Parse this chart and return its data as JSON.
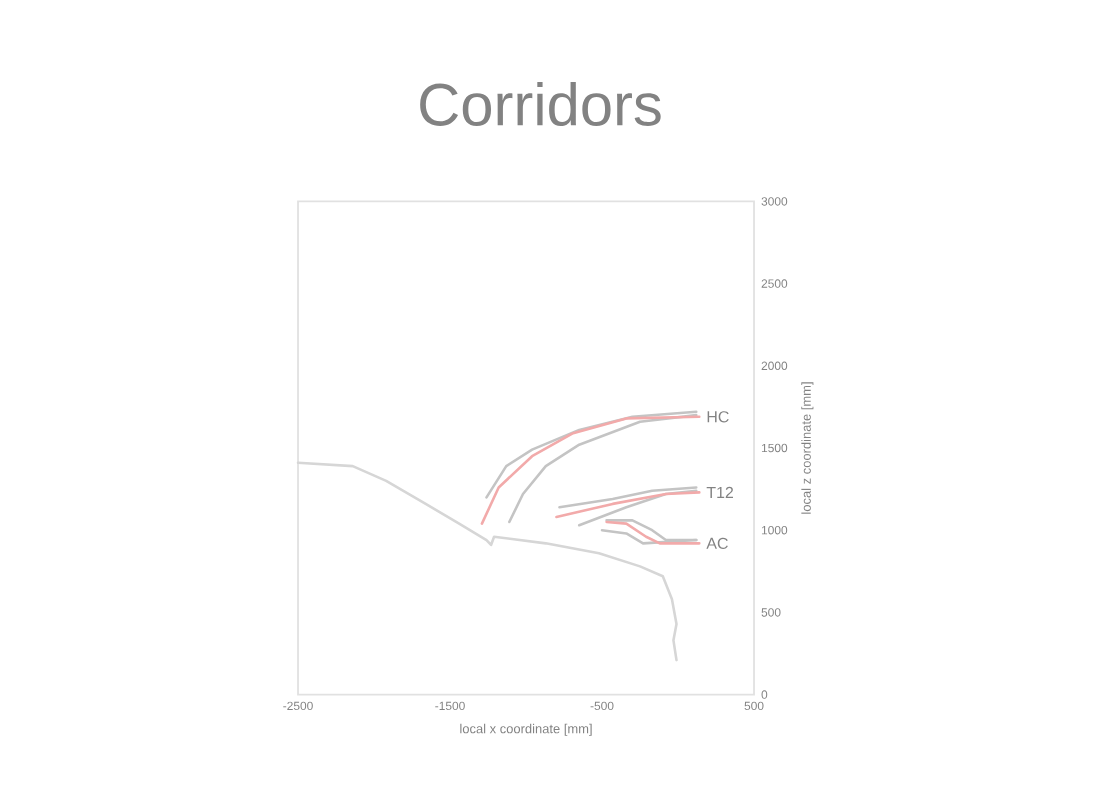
{
  "chart_data": {
    "type": "line",
    "title": "Corridors",
    "xlabel": "local x coordinate [mm]",
    "ylabel": "local z coordinate [mm]",
    "xlim": [
      -2500,
      500
    ],
    "ylim": [
      0,
      3000
    ],
    "xticks": [
      -2500,
      -1500,
      -500,
      500
    ],
    "yticks": [
      0,
      500,
      1000,
      1500,
      2000,
      2500,
      3000
    ],
    "grid": false,
    "legend": false,
    "marker": "none",
    "line_style": "solid",
    "series": [
      {
        "color": "#d6d6d6",
        "x": [
          -2500,
          -2140,
          -1920,
          -1660,
          -1440,
          -1260,
          -1230,
          -1210,
          -870,
          -520,
          -250,
          -100,
          -40,
          -10,
          -30,
          -10
        ],
        "values": [
          1410,
          1390,
          1300,
          1160,
          1040,
          940,
          910,
          960,
          920,
          860,
          780,
          720,
          580,
          430,
          330,
          210
        ]
      },
      {
        "color": "#c4c4c4",
        "x": [
          -1260,
          -1130,
          -960,
          -650,
          -300,
          120
        ],
        "values": [
          1200,
          1390,
          1490,
          1610,
          1690,
          1720
        ]
      },
      {
        "color": "#c4c4c4",
        "x": [
          -1110,
          -1020,
          -870,
          -650,
          -250,
          120
        ],
        "values": [
          1050,
          1220,
          1390,
          1520,
          1660,
          1700
        ]
      },
      {
        "name": "HC",
        "color": "#f2aaaa",
        "x": [
          -1290,
          -1180,
          -960,
          -690,
          -340,
          140
        ],
        "values": [
          1040,
          1260,
          1450,
          1590,
          1680,
          1690
        ]
      },
      {
        "color": "#c4c4c4",
        "x": [
          -780,
          -430,
          -170,
          120
        ],
        "values": [
          1140,
          1190,
          1240,
          1260
        ]
      },
      {
        "color": "#c4c4c4",
        "x": [
          -650,
          -340,
          -80,
          120
        ],
        "values": [
          1030,
          1140,
          1220,
          1240
        ]
      },
      {
        "name": "T12",
        "color": "#f2aaaa",
        "x": [
          -800,
          -430,
          -80,
          140
        ],
        "values": [
          1080,
          1160,
          1220,
          1230
        ]
      },
      {
        "color": "#c4c4c4",
        "x": [
          -470,
          -300,
          -170,
          -80,
          120
        ],
        "values": [
          1060,
          1060,
          1000,
          940,
          940
        ]
      },
      {
        "color": "#c4c4c4",
        "x": [
          -500,
          -340,
          -230,
          120
        ],
        "values": [
          1000,
          980,
          920,
          940
        ]
      },
      {
        "name": "AC",
        "color": "#f2aaaa",
        "x": [
          -470,
          -340,
          -210,
          -120,
          140
        ],
        "values": [
          1050,
          1040,
          960,
          920,
          920
        ]
      }
    ]
  }
}
